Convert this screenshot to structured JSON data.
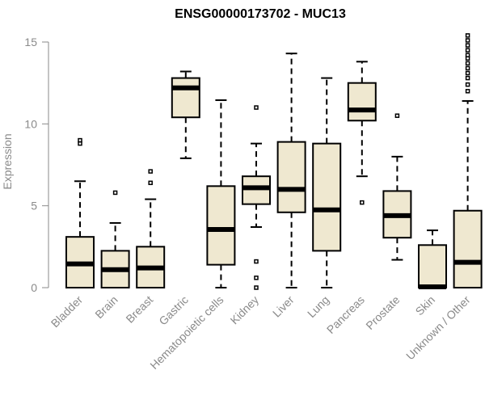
{
  "chart_data": {
    "type": "boxplot",
    "title": "ENSG00000173702 - MUC13",
    "xlabel": "",
    "ylabel": "Expression",
    "ylim": [
      0,
      15
    ],
    "yticks": [
      0,
      5,
      10,
      15
    ],
    "categories": [
      "Bladder",
      "Brain",
      "Breast",
      "Gastric",
      "Hematopoietic cells",
      "Kidney",
      "Liver",
      "Lung",
      "Pancreas",
      "Prostate",
      "Skin",
      "Unknown / Other"
    ],
    "boxes": [
      {
        "name": "Bladder",
        "min": 0,
        "q1": 0,
        "median": 1.45,
        "q3": 3.1,
        "max": 6.5,
        "outliers": [
          8.8,
          9.0
        ]
      },
      {
        "name": "Brain",
        "min": 0,
        "q1": 0,
        "median": 1.1,
        "q3": 2.25,
        "max": 3.95,
        "outliers": [
          5.8
        ]
      },
      {
        "name": "Breast",
        "min": 0,
        "q1": 0,
        "median": 1.2,
        "q3": 2.5,
        "max": 5.4,
        "outliers": [
          6.4,
          7.1
        ]
      },
      {
        "name": "Gastric",
        "min": 7.9,
        "q1": 10.4,
        "median": 12.2,
        "q3": 12.8,
        "max": 13.2,
        "outliers": []
      },
      {
        "name": "Hematopoietic cells",
        "min": 0,
        "q1": 1.4,
        "median": 3.55,
        "q3": 6.2,
        "max": 11.45,
        "outliers": []
      },
      {
        "name": "Kidney",
        "min": 3.7,
        "q1": 5.1,
        "median": 6.1,
        "q3": 6.8,
        "max": 8.8,
        "outliers": [
          0,
          0.6,
          1.6,
          11.0
        ]
      },
      {
        "name": "Liver",
        "min": 0,
        "q1": 4.6,
        "median": 6.0,
        "q3": 8.9,
        "max": 14.3,
        "outliers": []
      },
      {
        "name": "Lung",
        "min": 0,
        "q1": 2.25,
        "median": 4.75,
        "q3": 8.8,
        "max": 12.8,
        "outliers": []
      },
      {
        "name": "Pancreas",
        "min": 6.8,
        "q1": 10.2,
        "median": 10.85,
        "q3": 12.5,
        "max": 13.8,
        "outliers": [
          5.2
        ]
      },
      {
        "name": "Prostate",
        "min": 1.7,
        "q1": 3.05,
        "median": 4.4,
        "q3": 5.9,
        "max": 8.0,
        "outliers": [
          10.5
        ]
      },
      {
        "name": "Skin",
        "min": 0,
        "q1": 0,
        "median": 0.05,
        "q3": 2.6,
        "max": 3.5,
        "outliers": []
      },
      {
        "name": "Unknown / Other",
        "min": 0,
        "q1": 0,
        "median": 1.55,
        "q3": 4.7,
        "max": 11.4,
        "outliers": [
          12.0,
          12.4,
          12.8,
          13.1,
          13.4,
          13.7,
          14.0,
          14.2,
          14.5,
          14.8,
          15.1,
          15.4
        ]
      }
    ]
  }
}
